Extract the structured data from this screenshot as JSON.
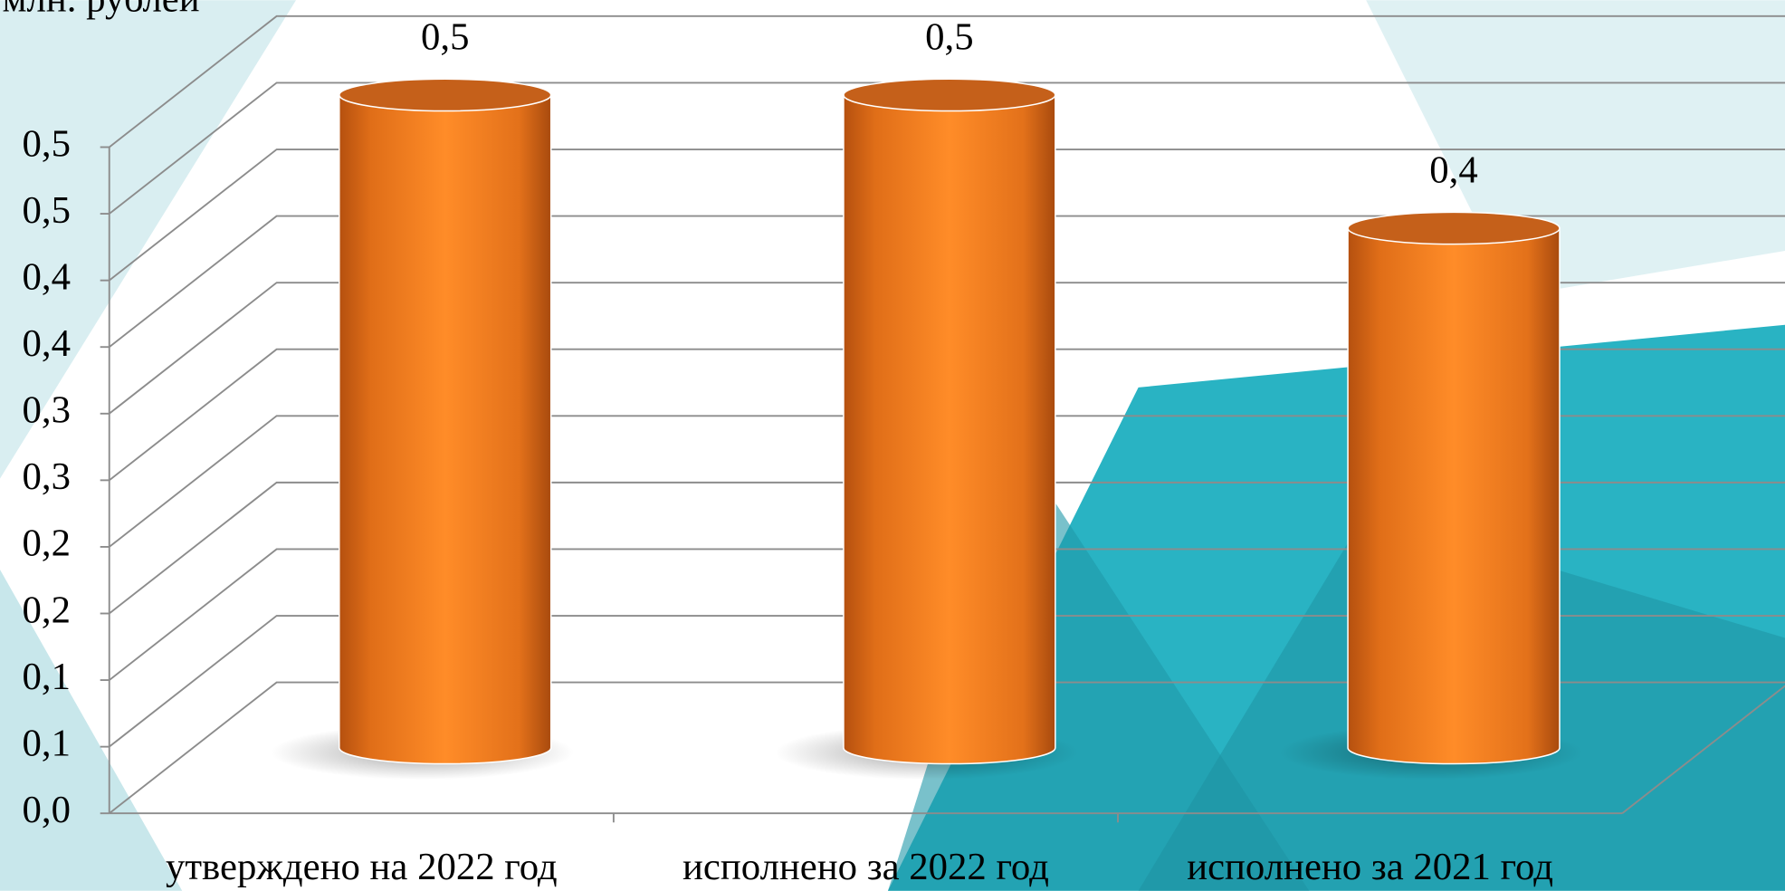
{
  "chart_data": {
    "type": "bar3d",
    "y_axis_label": "млн. рублей",
    "categories": [
      "утверждено на 2022 год",
      "исполнено за 2022 год",
      "исполнено за 2021 год"
    ],
    "values": [
      0.49,
      0.49,
      0.39
    ],
    "value_labels": [
      "0,5",
      "0,5",
      "0,4"
    ],
    "color": "#f58220",
    "ylim": [
      0,
      0.5
    ],
    "yticks": [
      {
        "value": 0,
        "label": "0,0"
      },
      {
        "value": 0.05,
        "label": "0,1"
      },
      {
        "value": 0.1,
        "label": "0,1"
      },
      {
        "value": 0.15,
        "label": "0,2"
      },
      {
        "value": 0.2,
        "label": "0,2"
      },
      {
        "value": 0.25,
        "label": "0,3"
      },
      {
        "value": 0.3,
        "label": "0,3"
      },
      {
        "value": 0.35,
        "label": "0,4"
      },
      {
        "value": 0.4,
        "label": "0,4"
      },
      {
        "value": 0.45,
        "label": "0,5"
      },
      {
        "value": 0.5,
        "label": "0,5"
      }
    ],
    "grid": true
  }
}
